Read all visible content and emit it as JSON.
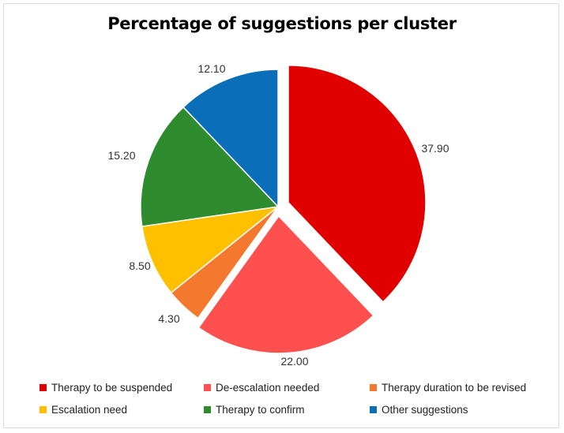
{
  "chart_data": {
    "type": "pie",
    "title": "Percentage of suggestions per cluster",
    "slices": [
      {
        "label": "Therapy to be suspended",
        "value": 37.9,
        "value_label": "37.90",
        "color": "#E00000",
        "exploded": true
      },
      {
        "label": "De-escalation needed",
        "value": 22.0,
        "value_label": "22.00",
        "color": "#FF5050",
        "exploded": true
      },
      {
        "label": "Therapy duration to be revised",
        "value": 4.3,
        "value_label": "4.30",
        "color": "#F4782E",
        "exploded": false
      },
      {
        "label": "Escalation need",
        "value": 8.5,
        "value_label": "8.50",
        "color": "#FFC000",
        "exploded": false
      },
      {
        "label": "Therapy to confirm",
        "value": 15.2,
        "value_label": "15.20",
        "color": "#2E8B2E",
        "exploded": false
      },
      {
        "label": "Other suggestions",
        "value": 12.1,
        "value_label": "12.10",
        "color": "#0A6FB8",
        "exploded": false
      }
    ],
    "legend_position": "bottom"
  }
}
